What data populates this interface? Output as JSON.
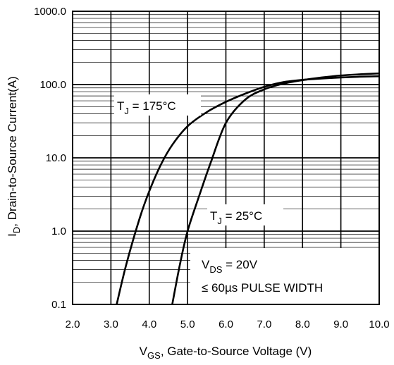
{
  "chart_data": {
    "type": "line",
    "title": "",
    "xlabel": {
      "main": "V",
      "sub": "GS",
      "rest": ", Gate-to-Source Voltage (V)"
    },
    "ylabel": {
      "main": "I",
      "sub": "D",
      "rest": ", Drain-to-Source Current(A)"
    },
    "xlim": [
      2.0,
      10.0
    ],
    "ylim": [
      0.1,
      1000.0
    ],
    "yscale": "log",
    "grid": true,
    "x_ticks": [
      "2.0",
      "3.0",
      "4.0",
      "5.0",
      "6.0",
      "7.0",
      "8.0",
      "9.0",
      "10.0"
    ],
    "y_ticks": [
      "0.1",
      "1.0",
      "10.0",
      "100.0",
      "1000.0"
    ],
    "series": [
      {
        "name": "TJ = 175°C",
        "label": {
          "main": "T",
          "sub": "J",
          "rest": " = 175°C"
        },
        "color": "#000000",
        "points": [
          [
            3.15,
            0.1
          ],
          [
            3.4,
            0.35
          ],
          [
            3.75,
            1.5
          ],
          [
            4.0,
            3.5
          ],
          [
            4.3,
            8.0
          ],
          [
            4.6,
            15.0
          ],
          [
            5.0,
            27.0
          ],
          [
            5.5,
            42.0
          ],
          [
            6.0,
            58.0
          ],
          [
            6.5,
            75.0
          ],
          [
            7.0,
            93.0
          ],
          [
            7.5,
            108.0
          ],
          [
            8.0,
            116.0
          ],
          [
            8.5,
            121.0
          ],
          [
            9.0,
            125.0
          ],
          [
            9.5,
            128.0
          ],
          [
            10.0,
            130.0
          ]
        ]
      },
      {
        "name": "TJ = 25°C",
        "label": {
          "main": "T",
          "sub": "J",
          "rest": " = 25°C"
        },
        "color": "#000000",
        "points": [
          [
            4.6,
            0.1
          ],
          [
            4.8,
            0.35
          ],
          [
            5.0,
            1.0
          ],
          [
            5.3,
            3.0
          ],
          [
            5.6,
            8.5
          ],
          [
            6.0,
            30.0
          ],
          [
            6.5,
            62.0
          ],
          [
            7.0,
            86.0
          ],
          [
            7.5,
            103.0
          ],
          [
            8.0,
            115.0
          ],
          [
            8.5,
            125.0
          ],
          [
            9.0,
            133.0
          ],
          [
            9.5,
            138.0
          ],
          [
            10.0,
            142.0
          ]
        ]
      }
    ],
    "annotations": [
      {
        "main": "V",
        "sub": "DS",
        "rest": " = 20V"
      },
      {
        "text": "≤ 60µs PULSE WIDTH"
      }
    ]
  }
}
